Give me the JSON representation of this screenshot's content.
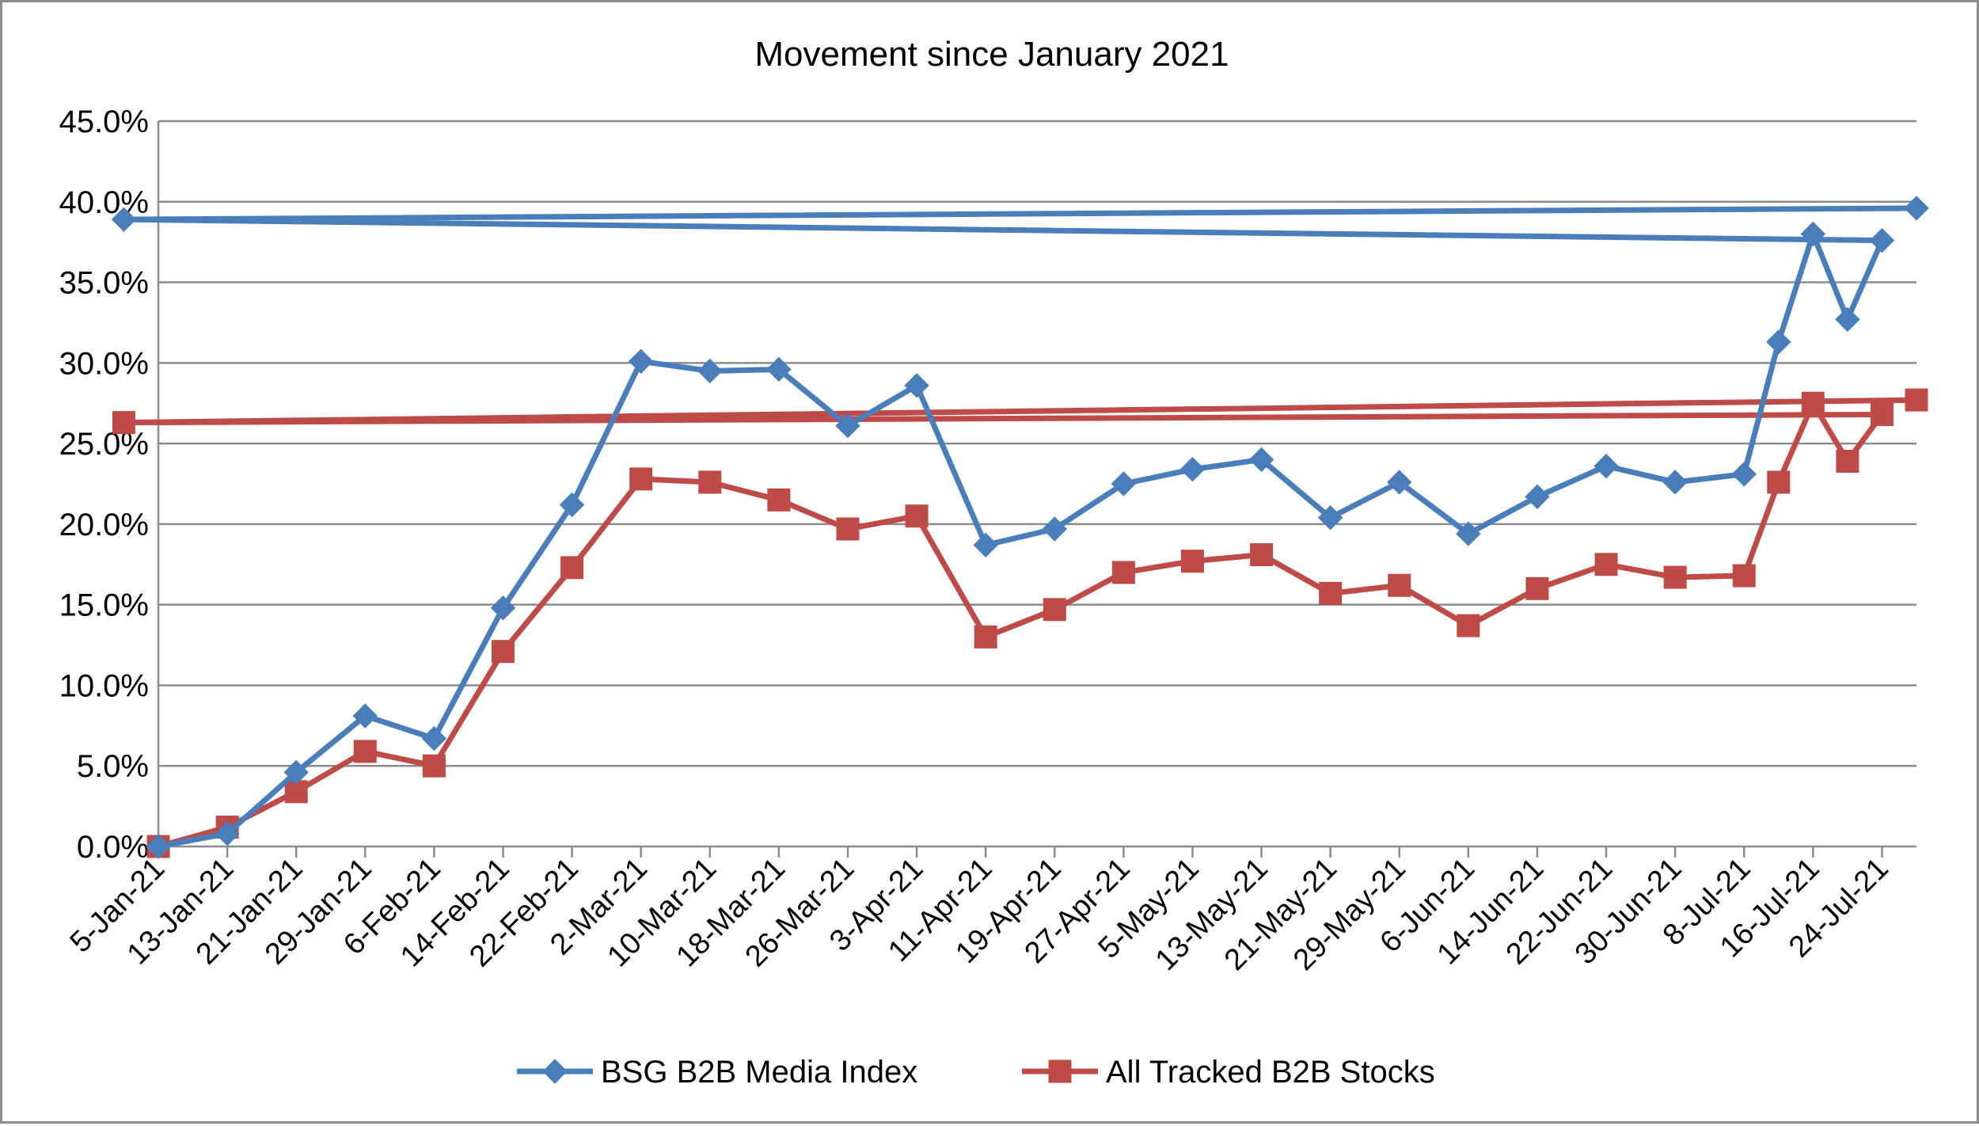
{
  "chart_data": {
    "type": "line",
    "title": "Movement since January 2021",
    "xlabel": "",
    "ylabel": "",
    "ylim": [
      0,
      45
    ],
    "y_tick_step": 5,
    "y_tick_format": "percent_one_decimal",
    "grid": true,
    "legend_position": "bottom",
    "categories": [
      "5-Jan-21",
      "13-Jan-21",
      "21-Jan-21",
      "29-Jan-21",
      "6-Feb-21",
      "14-Feb-21",
      "22-Feb-21",
      "2-Mar-21",
      "10-Mar-21",
      "18-Mar-21",
      "26-Mar-21",
      "3-Apr-21",
      "11-Apr-21",
      "19-Apr-21",
      "27-Apr-21",
      "5-May-21",
      "13-May-21",
      "21-May-21",
      "29-May-21",
      "6-Jun-21",
      "14-Jun-21",
      "22-Jun-21",
      "30-Jun-21",
      "8-Jul-21",
      "16-Jul-21",
      "24-Jul-21"
    ],
    "x_values": [
      "5-Jan-21",
      "9-Jan-21",
      "13-Jan-21",
      "17-Jan-21",
      "21-Jan-21",
      "25-Jan-21",
      "29-Jan-21",
      "2-Feb-21",
      "6-Feb-21",
      "10-Feb-21",
      "14-Feb-21",
      "18-Feb-21",
      "22-Feb-21",
      "26-Feb-21",
      "2-Mar-21",
      "6-Mar-21",
      "10-Mar-21",
      "14-Mar-21",
      "18-Mar-21",
      "22-Mar-21",
      "26-Mar-21",
      "30-Mar-21",
      "3-Apr-21",
      "7-Apr-21",
      "11-Apr-21",
      "15-Apr-21",
      "19-Apr-21",
      "23-Apr-21",
      "27-Apr-21",
      "1-May-21",
      "5-May-21",
      "9-May-21",
      "13-May-21",
      "17-May-21",
      "21-May-21",
      "25-May-21",
      "29-May-21",
      "2-Jun-21",
      "6-Jun-21",
      "10-Jun-21",
      "14-Jun-21",
      "18-Jun-21",
      "22-Jun-21",
      "26-Jun-21",
      "30-Jun-21",
      "4-Jul-21",
      "8-Jul-21",
      "12-Jul-21",
      "16-Jul-21",
      "20-Jul-21",
      "24-Jul-21",
      "28-Jul-21"
    ],
    "series": [
      {
        "name": "BSG B2B Media Index",
        "color": "#4a7ebb",
        "marker": "diamond",
        "points": [
          [
            "5-Jan-21",
            0.0
          ],
          [
            "13-Jan-21",
            0.8
          ],
          [
            "21-Jan-21",
            4.6
          ],
          [
            "29-Jan-21",
            8.1
          ],
          [
            "6-Feb-21",
            6.7
          ],
          [
            "14-Feb-21",
            14.8
          ],
          [
            "22-Feb-21",
            21.2
          ],
          [
            "2-Mar-21",
            30.1
          ],
          [
            "10-Mar-21",
            29.5
          ],
          [
            "18-Mar-21",
            29.6
          ],
          [
            "26-Mar-21",
            26.1
          ],
          [
            "3-Apr-21",
            28.6
          ],
          [
            "11-Apr-21",
            18.7
          ],
          [
            "19-Apr-21",
            19.7
          ],
          [
            "27-Apr-21",
            22.5
          ],
          [
            "5-May-21",
            23.4
          ],
          [
            "13-May-21",
            24.0
          ],
          [
            "21-May-21",
            20.4
          ],
          [
            "29-May-21",
            22.6
          ],
          [
            "6-Jun-21",
            19.4
          ],
          [
            "14-Jun-21",
            21.7
          ],
          [
            "22-Jun-21",
            23.6
          ],
          [
            "30-Jun-21",
            22.6
          ],
          [
            "8-Jul-21",
            23.1
          ],
          [
            "12-Jul-21",
            31.3
          ],
          [
            "16-Jul-21",
            38.0
          ],
          [
            "20-Jul-21",
            32.7
          ],
          [
            "24-Jul-21",
            37.6
          ],
          [
            "26-Jul-21",
            38.9
          ],
          [
            "28-Jul-21",
            39.6
          ]
        ]
      },
      {
        "name": "All Tracked B2B Stocks",
        "color": "#be4b48",
        "marker": "square",
        "points": [
          [
            "5-Jan-21",
            0.0
          ],
          [
            "13-Jan-21",
            1.2
          ],
          [
            "21-Jan-21",
            3.4
          ],
          [
            "29-Jan-21",
            5.9
          ],
          [
            "6-Feb-21",
            5.0
          ],
          [
            "14-Feb-21",
            12.1
          ],
          [
            "22-Feb-21",
            17.3
          ],
          [
            "2-Mar-21",
            22.8
          ],
          [
            "10-Mar-21",
            22.6
          ],
          [
            "18-Mar-21",
            21.5
          ],
          [
            "26-Mar-21",
            19.7
          ],
          [
            "3-Apr-21",
            20.5
          ],
          [
            "11-Apr-21",
            13.0
          ],
          [
            "19-Apr-21",
            14.7
          ],
          [
            "27-Apr-21",
            17.0
          ],
          [
            "5-May-21",
            17.7
          ],
          [
            "13-May-21",
            18.1
          ],
          [
            "21-May-21",
            15.7
          ],
          [
            "29-May-21",
            16.2
          ],
          [
            "6-Jun-21",
            13.7
          ],
          [
            "14-Jun-21",
            16.0
          ],
          [
            "22-Jun-21",
            17.5
          ],
          [
            "30-Jun-21",
            16.7
          ],
          [
            "8-Jul-21",
            16.8
          ],
          [
            "12-Jul-21",
            22.6
          ],
          [
            "16-Jul-21",
            27.5
          ],
          [
            "20-Jul-21",
            23.9
          ],
          [
            "24-Jul-21",
            26.8
          ],
          [
            "26-Jul-21",
            26.3
          ],
          [
            "28-Jul-21",
            27.7
          ]
        ]
      }
    ]
  }
}
